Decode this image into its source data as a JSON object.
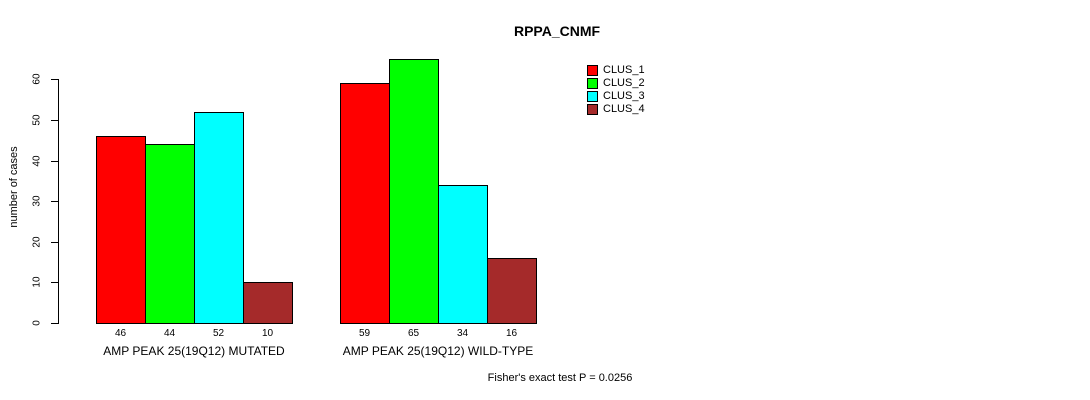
{
  "title": "RPPA_CNMF",
  "chart_data": {
    "type": "bar",
    "title": "RPPA_CNMF",
    "xlabel": "",
    "ylabel": "number of cases",
    "ylim": [
      0,
      60
    ],
    "yticks": [
      0,
      10,
      20,
      30,
      40,
      50,
      60
    ],
    "grid": false,
    "legend_position": "top-right",
    "bar_value_labels_shown": true,
    "categories": [
      "AMP PEAK 25(19Q12) MUTATED",
      "AMP PEAK 25(19Q12) WILD-TYPE"
    ],
    "series": [
      {
        "name": "CLUS_1",
        "color": "#FF0000",
        "values": [
          46,
          59
        ]
      },
      {
        "name": "CLUS_2",
        "color": "#00FF00",
        "values": [
          44,
          65
        ]
      },
      {
        "name": "CLUS_3",
        "color": "#00FFFF",
        "values": [
          52,
          34
        ]
      },
      {
        "name": "CLUS_4",
        "color": "#A52A2A",
        "values": [
          10,
          16
        ]
      }
    ]
  },
  "legend": {
    "items": [
      {
        "label": "CLUS_1",
        "color": "#FF0000"
      },
      {
        "label": "CLUS_2",
        "color": "#00FF00"
      },
      {
        "label": "CLUS_3",
        "color": "#00FFFF"
      },
      {
        "label": "CLUS_4",
        "color": "#A52A2A"
      }
    ]
  },
  "footer": {
    "stat_text": "Fisher's exact test P = 0.0256"
  }
}
